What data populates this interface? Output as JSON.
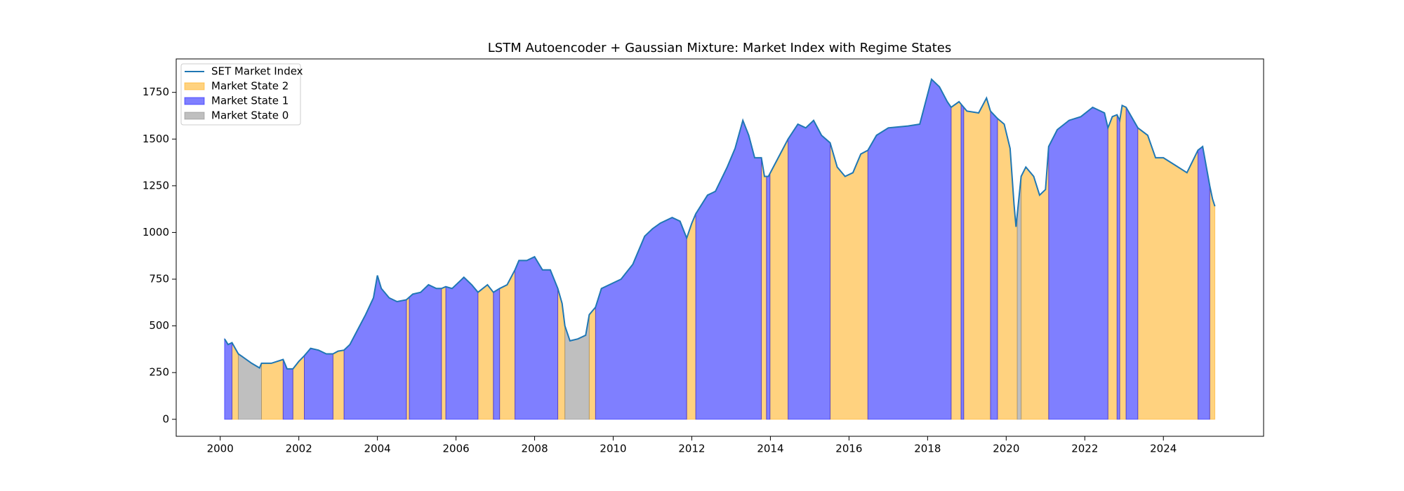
{
  "chart_data": {
    "type": "line",
    "title": "LSTM Autoencoder + Gaussian Mixture: Market Index with Regime States",
    "x": [
      2000.11,
      2000.2,
      2000.3,
      2000.46,
      2000.6,
      2000.8,
      2001.0,
      2001.05,
      2001.3,
      2001.6,
      2001.7,
      2001.85,
      2002.0,
      2002.14,
      2002.3,
      2002.5,
      2002.7,
      2002.87,
      2003.0,
      2003.15,
      2003.3,
      2003.5,
      2003.7,
      2003.9,
      2004.0,
      2004.1,
      2004.3,
      2004.5,
      2004.74,
      2004.9,
      2005.1,
      2005.3,
      2005.5,
      2005.63,
      2005.74,
      2005.9,
      2006.1,
      2006.2,
      2006.4,
      2006.56,
      2006.8,
      2006.95,
      2007.11,
      2007.3,
      2007.5,
      2007.6,
      2007.8,
      2008.0,
      2008.2,
      2008.4,
      2008.59,
      2008.7,
      2008.77,
      2008.9,
      2009.1,
      2009.3,
      2009.39,
      2009.55,
      2009.7,
      2009.9,
      2010.2,
      2010.5,
      2010.8,
      2011.0,
      2011.2,
      2011.5,
      2011.7,
      2011.87,
      2012.0,
      2012.1,
      2012.4,
      2012.6,
      2012.9,
      2013.1,
      2013.3,
      2013.45,
      2013.6,
      2013.77,
      2013.85,
      2013.95,
      2014.2,
      2014.45,
      2014.7,
      2014.9,
      2015.1,
      2015.3,
      2015.52,
      2015.7,
      2015.9,
      2016.1,
      2016.3,
      2016.48,
      2016.7,
      2017.0,
      2017.5,
      2017.8,
      2017.95,
      2018.1,
      2018.3,
      2018.5,
      2018.6,
      2018.8,
      2019.0,
      2019.3,
      2019.5,
      2019.6,
      2019.78,
      2019.95,
      2020.1,
      2020.2,
      2020.25,
      2020.38,
      2020.5,
      2020.7,
      2020.85,
      2021.0,
      2021.08,
      2021.3,
      2021.6,
      2021.9,
      2022.2,
      2022.5,
      2022.59,
      2022.7,
      2022.82,
      2022.89,
      2022.95,
      2023.05,
      2023.35,
      2023.6,
      2023.8,
      2024.0,
      2024.3,
      2024.6,
      2024.88,
      2025.0,
      2025.18,
      2025.25,
      2025.31
    ],
    "series": [
      {
        "name": "SET Market Index",
        "color": "#1f77b4",
        "values": [
          430,
          400,
          410,
          350,
          330,
          300,
          275,
          300,
          300,
          320,
          270,
          270,
          310,
          340,
          380,
          370,
          350,
          350,
          365,
          370,
          400,
          480,
          560,
          650,
          770,
          700,
          650,
          630,
          640,
          670,
          680,
          720,
          700,
          700,
          710,
          700,
          740,
          760,
          720,
          680,
          720,
          680,
          700,
          720,
          800,
          850,
          850,
          870,
          800,
          800,
          700,
          620,
          500,
          420,
          430,
          450,
          560,
          600,
          700,
          720,
          750,
          830,
          980,
          1020,
          1050,
          1080,
          1060,
          970,
          1050,
          1100,
          1200,
          1220,
          1350,
          1450,
          1600,
          1520,
          1400,
          1400,
          1300,
          1300,
          1400,
          1500,
          1580,
          1560,
          1600,
          1520,
          1480,
          1350,
          1300,
          1320,
          1420,
          1440,
          1520,
          1560,
          1570,
          1580,
          1700,
          1820,
          1780,
          1700,
          1670,
          1700,
          1650,
          1640,
          1720,
          1650,
          1610,
          1580,
          1450,
          1150,
          1030,
          1300,
          1350,
          1300,
          1200,
          1230,
          1460,
          1550,
          1600,
          1620,
          1670,
          1640,
          1560,
          1620,
          1630,
          1600,
          1680,
          1670,
          1560,
          1520,
          1400,
          1400,
          1360,
          1320,
          1440,
          1460,
          1250,
          1180,
          1140
        ]
      }
    ],
    "areas": [
      {
        "name": "Market State 2",
        "color": "#ffa500",
        "spans": [
          [
            2000.3,
            2000.46
          ],
          [
            2001.05,
            2001.6
          ],
          [
            2001.85,
            2002.14
          ],
          [
            2002.87,
            2003.15
          ],
          [
            2004.74,
            2004.81
          ],
          [
            2005.63,
            2005.74
          ],
          [
            2006.56,
            2006.95
          ],
          [
            2007.11,
            2007.5
          ],
          [
            2008.59,
            2008.77
          ],
          [
            2009.39,
            2009.55
          ],
          [
            2011.87,
            2012.1
          ],
          [
            2013.77,
            2013.9
          ],
          [
            2013.99,
            2014.45
          ],
          [
            2015.52,
            2016.48
          ],
          [
            2018.6,
            2018.85
          ],
          [
            2018.92,
            2019.6
          ],
          [
            2019.78,
            2020.28
          ],
          [
            2020.38,
            2021.08
          ],
          [
            2022.59,
            2022.82
          ],
          [
            2022.89,
            2023.05
          ],
          [
            2023.35,
            2024.88
          ],
          [
            2025.18,
            2025.31
          ]
        ]
      },
      {
        "name": "Market State 1",
        "color": "#0000ff",
        "spans": [
          [
            2000.11,
            2000.3
          ],
          [
            2001.6,
            2001.85
          ],
          [
            2002.14,
            2002.87
          ],
          [
            2003.15,
            2004.74
          ],
          [
            2004.81,
            2005.63
          ],
          [
            2005.74,
            2006.56
          ],
          [
            2006.95,
            2007.11
          ],
          [
            2007.5,
            2008.59
          ],
          [
            2009.55,
            2011.87
          ],
          [
            2012.1,
            2013.77
          ],
          [
            2013.9,
            2013.99
          ],
          [
            2014.45,
            2015.52
          ],
          [
            2016.48,
            2018.6
          ],
          [
            2018.85,
            2018.92
          ],
          [
            2019.6,
            2019.78
          ],
          [
            2021.08,
            2022.59
          ],
          [
            2022.82,
            2022.89
          ],
          [
            2023.05,
            2023.35
          ],
          [
            2024.88,
            2025.18
          ]
        ]
      },
      {
        "name": "Market State 0",
        "color": "#808080",
        "spans": [
          [
            2000.46,
            2001.05
          ],
          [
            2008.77,
            2009.39
          ],
          [
            2020.28,
            2020.38
          ]
        ]
      }
    ],
    "xlim": [
      1998.88,
      2026.55
    ],
    "xticks": [
      2000,
      2002,
      2004,
      2006,
      2008,
      2010,
      2012,
      2014,
      2016,
      2018,
      2020,
      2022,
      2024
    ],
    "ylim": [
      -91,
      1929
    ],
    "yticks": [
      0,
      250,
      500,
      750,
      1000,
      1250,
      1500,
      1750
    ],
    "legend": "upper left"
  }
}
